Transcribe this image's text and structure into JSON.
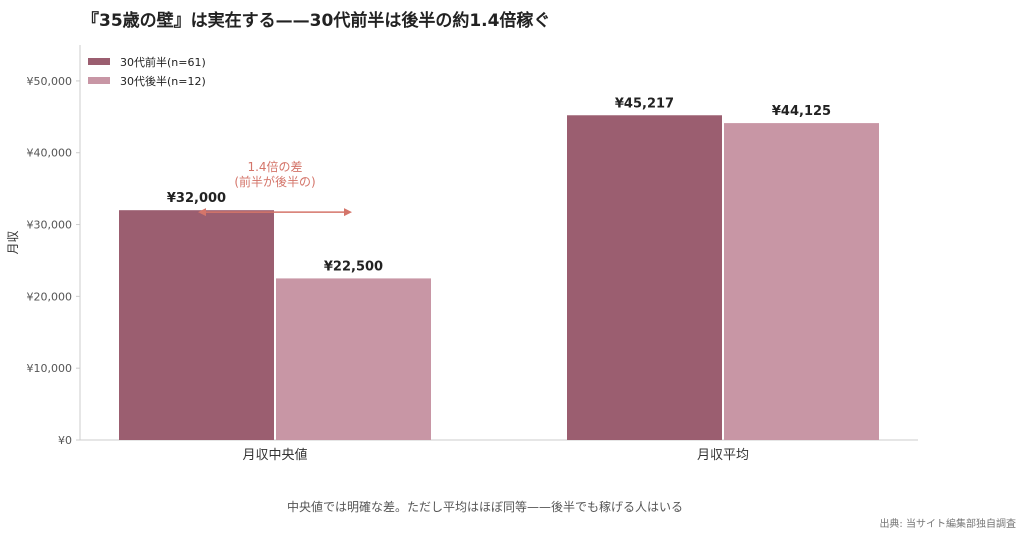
{
  "title": "『35歳の壁』は実在する——30代前半は後半の約1.4倍稼ぐ",
  "caption": "中央値では明確な差。ただし平均はほぼ同等——後半でも稼げる人はいる",
  "source": "出典: 当サイト編集部独自調査",
  "colors": {
    "early": "#9b5e70",
    "late": "#c896a5",
    "annotation": "#d4756a",
    "axis": "#cccccc",
    "text": "#222222"
  },
  "chart_data": {
    "type": "bar",
    "categories": [
      "月収中央値",
      "月収平均"
    ],
    "series": [
      {
        "name": "30代前半(n=61)",
        "values": [
          32000,
          45217
        ],
        "labels": [
          "¥32,000",
          "¥45,217"
        ]
      },
      {
        "name": "30代後半(n=12)",
        "values": [
          22500,
          44125
        ],
        "labels": [
          "¥22,500",
          "¥44,125"
        ]
      }
    ],
    "ylabel": "月収",
    "ylim": [
      0,
      55000
    ],
    "yticks": [
      0,
      10000,
      20000,
      30000,
      40000,
      50000
    ],
    "ytick_labels": [
      "¥0",
      "¥10,000",
      "¥20,000",
      "¥30,000",
      "¥40,000",
      "¥50,000"
    ],
    "legend_position": "top-left",
    "annotation": {
      "line1": "1.4倍の差",
      "line2": "(前半が後半の)",
      "from_value": 32000,
      "to_value": 22500
    }
  }
}
